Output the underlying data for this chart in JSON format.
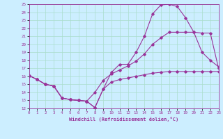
{
  "xlabel": "Windchill (Refroidissement éolien,°C)",
  "bg_color": "#cceeff",
  "line_color": "#993399",
  "grid_color": "#aaddcc",
  "xlim": [
    0,
    23
  ],
  "ylim": [
    12,
    25
  ],
  "xticks": [
    0,
    1,
    2,
    3,
    4,
    5,
    6,
    7,
    8,
    9,
    10,
    11,
    12,
    13,
    14,
    15,
    16,
    17,
    18,
    19,
    20,
    21,
    22,
    23
  ],
  "yticks": [
    12,
    13,
    14,
    15,
    16,
    17,
    18,
    19,
    20,
    21,
    22,
    23,
    24,
    25
  ],
  "line1_x": [
    0,
    1,
    2,
    3,
    4,
    5,
    6,
    7,
    8,
    9,
    10,
    11,
    12,
    13,
    14,
    15,
    16,
    17,
    18,
    19,
    20,
    21,
    22,
    23
  ],
  "line1_y": [
    16.1,
    15.6,
    15.0,
    14.8,
    13.3,
    13.1,
    13.0,
    12.9,
    12.1,
    14.4,
    15.3,
    15.6,
    15.8,
    16.0,
    16.2,
    16.4,
    16.5,
    16.6,
    16.6,
    16.6,
    16.6,
    16.6,
    16.6,
    16.6
  ],
  "line2_x": [
    0,
    1,
    2,
    3,
    4,
    5,
    6,
    7,
    8,
    9,
    10,
    11,
    12,
    13,
    14,
    15,
    16,
    17,
    18,
    19,
    20,
    21,
    22,
    23
  ],
  "line2_y": [
    16.1,
    15.6,
    15.0,
    14.8,
    13.3,
    13.1,
    13.0,
    12.9,
    12.1,
    14.4,
    16.5,
    17.5,
    17.5,
    19.0,
    21.0,
    23.8,
    24.9,
    25.0,
    24.7,
    23.3,
    21.5,
    19.0,
    18.0,
    17.2
  ],
  "line3_x": [
    0,
    1,
    2,
    3,
    4,
    5,
    6,
    7,
    8,
    9,
    10,
    11,
    12,
    13,
    14,
    15,
    16,
    17,
    18,
    19,
    20,
    21,
    22,
    23
  ],
  "line3_y": [
    16.1,
    15.6,
    15.0,
    14.8,
    13.3,
    13.1,
    13.0,
    12.9,
    14.0,
    15.5,
    16.3,
    16.8,
    17.3,
    17.9,
    18.8,
    20.0,
    20.8,
    21.5,
    21.5,
    21.5,
    21.5,
    21.4,
    21.4,
    17.0
  ]
}
